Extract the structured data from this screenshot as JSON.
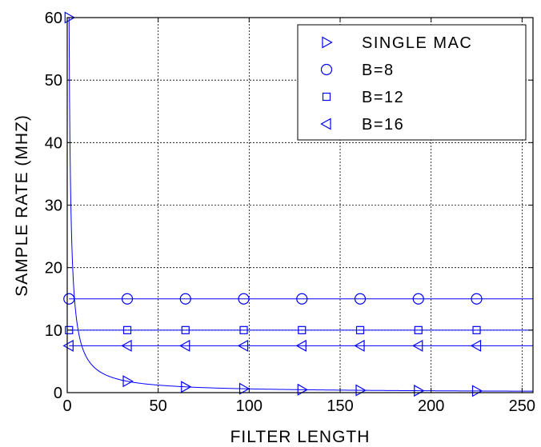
{
  "chart_data": {
    "type": "line",
    "title": "",
    "xlabel": "FILTER LENGTH",
    "ylabel": "SAMPLE RATE (MHZ)",
    "xlim": [
      0,
      256
    ],
    "ylim": [
      0,
      60
    ],
    "xticks": [
      0,
      50,
      100,
      150,
      200,
      250
    ],
    "yticks": [
      0,
      10,
      20,
      30,
      40,
      50,
      60
    ],
    "grid": true,
    "legend_position": "top-right",
    "series": [
      {
        "name": "SINGLE MAC",
        "marker": "triangle-right",
        "curve": "60/x",
        "marker_x": [
          1,
          33,
          65,
          97,
          129,
          161,
          193,
          225
        ],
        "marker_y": [
          60,
          1.82,
          0.92,
          0.62,
          0.47,
          0.37,
          0.31,
          0.27
        ],
        "color": "#0000ff"
      },
      {
        "name": "B=8",
        "marker": "circle",
        "y": 15,
        "marker_x": [
          1,
          33,
          65,
          97,
          129,
          161,
          193,
          225
        ],
        "color": "#0000ff"
      },
      {
        "name": "B=12",
        "marker": "square",
        "y": 10,
        "marker_x": [
          1,
          33,
          65,
          97,
          129,
          161,
          193,
          225
        ],
        "color": "#0000ff"
      },
      {
        "name": "B=16",
        "marker": "triangle-left",
        "y": 7.5,
        "marker_x": [
          1,
          33,
          65,
          97,
          129,
          161,
          193,
          225
        ],
        "color": "#0000ff"
      }
    ]
  }
}
